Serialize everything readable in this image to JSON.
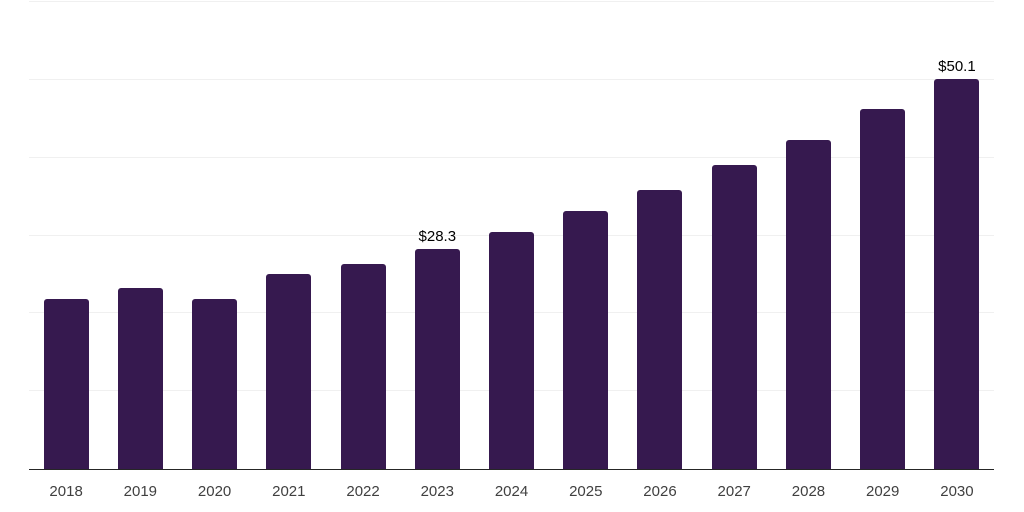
{
  "chart_data": {
    "type": "bar",
    "title": "",
    "xlabel": "",
    "ylabel": "",
    "categories": [
      "2018",
      "2019",
      "2020",
      "2021",
      "2022",
      "2023",
      "2024",
      "2025",
      "2026",
      "2027",
      "2028",
      "2029",
      "2030"
    ],
    "values": [
      21.9,
      23.3,
      21.8,
      25.1,
      26.4,
      28.3,
      30.5,
      33.2,
      35.9,
      39.0,
      42.3,
      46.2,
      50.1
    ],
    "data_labels": {
      "2023": "$28.3",
      "2030": "$50.1"
    },
    "ylim": [
      0,
      60
    ],
    "gridline_step": 10,
    "grid": "horizontal-only",
    "legend_position": "none",
    "y_axis_tick_labels_visible": false,
    "colors": {
      "bar": "#36194f",
      "axis_line": "#262626",
      "gridline": "#f0f0f0",
      "tick_label": "#404040",
      "data_label": "#000000",
      "background": "#ffffff"
    }
  }
}
